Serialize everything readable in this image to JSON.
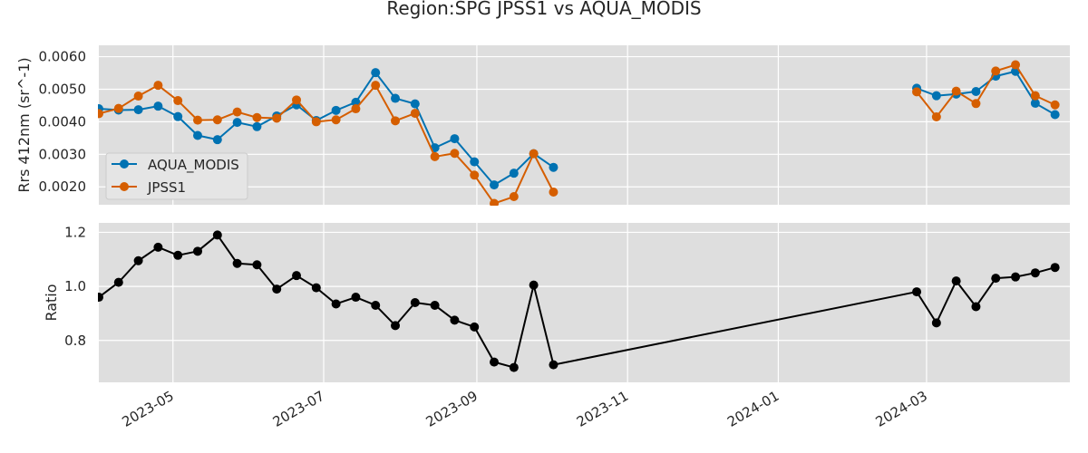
{
  "chart_data": {
    "title": "Region:SPG JPSS1 vs AQUA_MODIS",
    "x_ticks": [
      "2023-05",
      "2023-07",
      "2023-09",
      "2023-11",
      "2024-01",
      "2024-03"
    ],
    "xlim": [
      "2023-04-01",
      "2024-04-28"
    ],
    "grid": true,
    "panels": [
      {
        "type": "line",
        "ylabel": "Rrs 412nm (sr^-1)",
        "ylim": [
          0.00145,
          0.00635
        ],
        "y_ticks": [
          "0.0020",
          "0.0030",
          "0.0040",
          "0.0050",
          "0.0060"
        ],
        "legend": "lower-left",
        "series": [
          {
            "name": "AQUA_MODIS",
            "color": "#0072B2",
            "points": [
              [
                "2023-04-01",
                0.0044
              ],
              [
                "2023-04-09",
                0.00436
              ],
              [
                "2023-04-17",
                0.00437
              ],
              [
                "2023-04-25",
                0.00448
              ],
              [
                "2023-05-03",
                0.00416
              ],
              [
                "2023-05-11",
                0.00358
              ],
              [
                "2023-05-19",
                0.00345
              ],
              [
                "2023-05-27",
                0.00398
              ],
              [
                "2023-06-04",
                0.00385
              ],
              [
                "2023-06-12",
                0.00418
              ],
              [
                "2023-06-20",
                0.00452
              ],
              [
                "2023-06-28",
                0.00404
              ],
              [
                "2023-07-06",
                0.00435
              ],
              [
                "2023-07-14",
                0.0046
              ],
              [
                "2023-07-22",
                0.00551
              ],
              [
                "2023-07-30",
                0.00472
              ],
              [
                "2023-08-07",
                0.00455
              ],
              [
                "2023-08-15",
                0.0032
              ],
              [
                "2023-08-23",
                0.00348
              ],
              [
                "2023-08-31",
                0.00277
              ],
              [
                "2023-09-08",
                0.00206
              ],
              [
                "2023-09-16",
                0.00242
              ],
              [
                "2023-09-24",
                0.00302
              ],
              [
                "2023-10-02",
                0.0026
              ],
              null,
              [
                "2024-02-26",
                0.00503
              ],
              [
                "2024-03-05",
                0.0048
              ],
              [
                "2024-03-13",
                0.00485
              ],
              [
                "2024-03-21",
                0.00493
              ],
              [
                "2024-03-29",
                0.0054
              ],
              [
                "2024-04-06",
                0.00555
              ],
              [
                "2024-04-14",
                0.00457
              ],
              [
                "2024-04-22",
                0.00422
              ]
            ]
          },
          {
            "name": "JPSS1",
            "color": "#D55E00",
            "points": [
              [
                "2023-04-01",
                0.00425
              ],
              [
                "2023-04-09",
                0.00441
              ],
              [
                "2023-04-17",
                0.00479
              ],
              [
                "2023-04-25",
                0.00512
              ],
              [
                "2023-05-03",
                0.00465
              ],
              [
                "2023-05-11",
                0.00405
              ],
              [
                "2023-05-19",
                0.00406
              ],
              [
                "2023-05-27",
                0.0043
              ],
              [
                "2023-06-04",
                0.00413
              ],
              [
                "2023-06-12",
                0.00411
              ],
              [
                "2023-06-20",
                0.00467
              ],
              [
                "2023-06-28",
                0.004
              ],
              [
                "2023-07-06",
                0.00406
              ],
              [
                "2023-07-14",
                0.0044
              ],
              [
                "2023-07-22",
                0.00512
              ],
              [
                "2023-07-30",
                0.00403
              ],
              [
                "2023-08-07",
                0.00426
              ],
              [
                "2023-08-15",
                0.00293
              ],
              [
                "2023-08-23",
                0.00303
              ],
              [
                "2023-08-31",
                0.00236
              ],
              [
                "2023-09-08",
                0.00149
              ],
              [
                "2023-09-16",
                0.0017
              ],
              [
                "2023-09-24",
                0.00302
              ],
              [
                "2023-10-02",
                0.00184
              ],
              null,
              [
                "2024-02-26",
                0.00492
              ],
              [
                "2024-03-05",
                0.00415
              ],
              [
                "2024-03-13",
                0.00494
              ],
              [
                "2024-03-21",
                0.00456
              ],
              [
                "2024-03-29",
                0.00556
              ],
              [
                "2024-04-06",
                0.00575
              ],
              [
                "2024-04-14",
                0.0048
              ],
              [
                "2024-04-22",
                0.00452
              ]
            ]
          }
        ]
      },
      {
        "type": "line",
        "ylabel": "Ratio",
        "ylim": [
          0.645,
          1.235
        ],
        "y_ticks": [
          "0.8",
          "1.0",
          "1.2"
        ],
        "series": [
          {
            "color": "#000000",
            "points": [
              [
                "2023-04-01",
                0.96
              ],
              [
                "2023-04-09",
                1.015
              ],
              [
                "2023-04-17",
                1.095
              ],
              [
                "2023-04-25",
                1.145
              ],
              [
                "2023-05-03",
                1.115
              ],
              [
                "2023-05-11",
                1.13
              ],
              [
                "2023-05-19",
                1.19
              ],
              [
                "2023-05-27",
                1.085
              ],
              [
                "2023-06-04",
                1.08
              ],
              [
                "2023-06-12",
                0.99
              ],
              [
                "2023-06-20",
                1.04
              ],
              [
                "2023-06-28",
                0.995
              ],
              [
                "2023-07-06",
                0.935
              ],
              [
                "2023-07-14",
                0.96
              ],
              [
                "2023-07-22",
                0.93
              ],
              [
                "2023-07-30",
                0.855
              ],
              [
                "2023-08-07",
                0.94
              ],
              [
                "2023-08-15",
                0.93
              ],
              [
                "2023-08-23",
                0.875
              ],
              [
                "2023-08-31",
                0.85
              ],
              [
                "2023-09-08",
                0.72
              ],
              [
                "2023-09-16",
                0.7
              ],
              [
                "2023-09-24",
                1.005
              ],
              [
                "2023-10-02",
                0.71
              ],
              [
                "2024-02-26",
                0.98
              ],
              [
                "2024-03-05",
                0.865
              ],
              [
                "2024-03-13",
                1.02
              ],
              [
                "2024-03-21",
                0.925
              ],
              [
                "2024-03-29",
                1.03
              ],
              [
                "2024-04-06",
                1.035
              ],
              [
                "2024-04-14",
                1.05
              ],
              [
                "2024-04-22",
                1.07
              ]
            ]
          }
        ]
      }
    ]
  }
}
